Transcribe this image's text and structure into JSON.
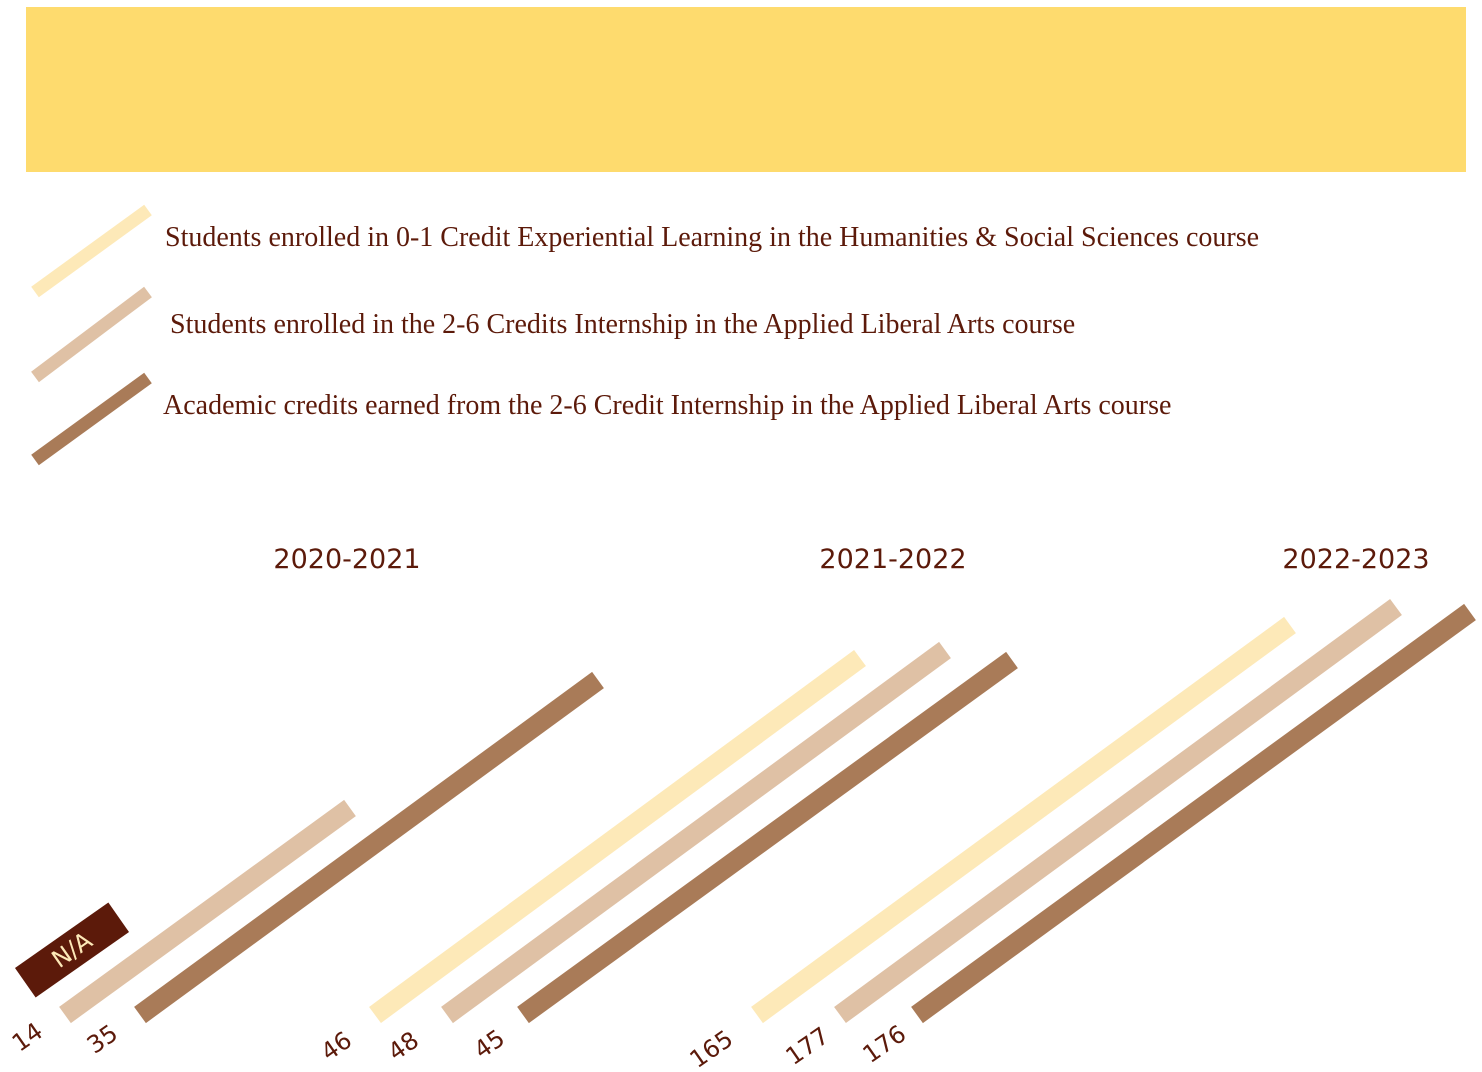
{
  "legend": [
    {
      "label": "Students enrolled in 0-1 Credit Experiential Learning in the Humanities & Social Sciences course",
      "color": "#fde9b8"
    },
    {
      "label": "Students enrolled in the 2-6 Credits Internship in the Applied Liberal Arts course",
      "color": "#dfc1a5"
    },
    {
      "label": "Academic credits earned from the 2-6 Credit Internship in the Applied Liberal Arts course",
      "color": "#a97b58"
    }
  ],
  "groups": [
    {
      "year": "2020-2021",
      "values": [
        null,
        14,
        35
      ],
      "na_label": "N/A"
    },
    {
      "year": "2021-2022",
      "values": [
        46,
        48,
        45
      ]
    },
    {
      "year": "2022-2023",
      "values": [
        165,
        177,
        176
      ]
    }
  ]
}
